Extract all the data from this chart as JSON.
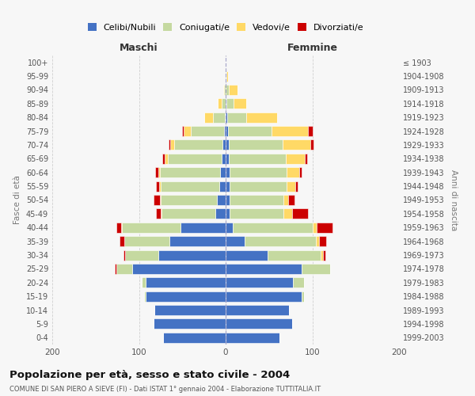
{
  "age_groups": [
    "0-4",
    "5-9",
    "10-14",
    "15-19",
    "20-24",
    "25-29",
    "30-34",
    "35-39",
    "40-44",
    "45-49",
    "50-54",
    "55-59",
    "60-64",
    "65-69",
    "70-74",
    "75-79",
    "80-84",
    "85-89",
    "90-94",
    "95-99",
    "100+"
  ],
  "birth_years": [
    "1999-2003",
    "1994-1998",
    "1989-1993",
    "1984-1988",
    "1979-1983",
    "1974-1978",
    "1969-1973",
    "1964-1968",
    "1959-1963",
    "1954-1958",
    "1949-1953",
    "1944-1948",
    "1939-1943",
    "1934-1938",
    "1929-1933",
    "1924-1928",
    "1919-1923",
    "1914-1918",
    "1909-1913",
    "1904-1908",
    "≤ 1903"
  ],
  "maschi": {
    "celibi": [
      72,
      83,
      82,
      92,
      92,
      108,
      78,
      65,
      52,
      12,
      10,
      7,
      6,
      5,
      4,
      2,
      1,
      0,
      0,
      0,
      0
    ],
    "coniugati": [
      0,
      0,
      0,
      2,
      5,
      18,
      38,
      52,
      68,
      62,
      65,
      68,
      70,
      62,
      55,
      38,
      14,
      5,
      2,
      0,
      0
    ],
    "vedovi": [
      0,
      0,
      0,
      0,
      0,
      0,
      0,
      0,
      1,
      1,
      1,
      2,
      2,
      3,
      5,
      8,
      10,
      4,
      1,
      0,
      0
    ],
    "divorziati": [
      0,
      0,
      0,
      0,
      0,
      2,
      2,
      5,
      5,
      5,
      7,
      3,
      3,
      3,
      2,
      2,
      0,
      0,
      0,
      0,
      0
    ]
  },
  "femmine": {
    "nubili": [
      62,
      77,
      73,
      88,
      78,
      88,
      48,
      22,
      8,
      5,
      5,
      5,
      5,
      4,
      4,
      3,
      2,
      1,
      0,
      0,
      0
    ],
    "coniugate": [
      0,
      0,
      0,
      2,
      12,
      33,
      62,
      82,
      92,
      62,
      62,
      65,
      65,
      65,
      62,
      50,
      22,
      8,
      4,
      1,
      0
    ],
    "vedove": [
      0,
      0,
      0,
      0,
      0,
      0,
      2,
      4,
      5,
      10,
      5,
      10,
      15,
      22,
      32,
      42,
      35,
      15,
      10,
      2,
      0
    ],
    "divorziate": [
      0,
      0,
      0,
      0,
      0,
      0,
      3,
      8,
      18,
      18,
      7,
      3,
      3,
      3,
      3,
      5,
      0,
      0,
      0,
      0,
      0
    ]
  },
  "colors": {
    "celibi_nubili": "#4472C4",
    "coniugati": "#C5D9A0",
    "vedovi": "#FFD966",
    "divorziati": "#CC0000"
  },
  "title": "Popolazione per età, sesso e stato civile - 2004",
  "subtitle": "COMUNE DI SAN PIERO A SIEVE (FI) - Dati ISTAT 1° gennaio 2004 - Elaborazione TUTTITALIA.IT",
  "xlabel_left": "Maschi",
  "xlabel_right": "Femmine",
  "ylabel_left": "Fasce di età",
  "ylabel_right": "Anni di nascita",
  "xlim": 200,
  "background_color": "#f7f7f7",
  "legend_labels": [
    "Celibi/Nubili",
    "Coniugati/e",
    "Vedovi/e",
    "Divorziati/e"
  ]
}
